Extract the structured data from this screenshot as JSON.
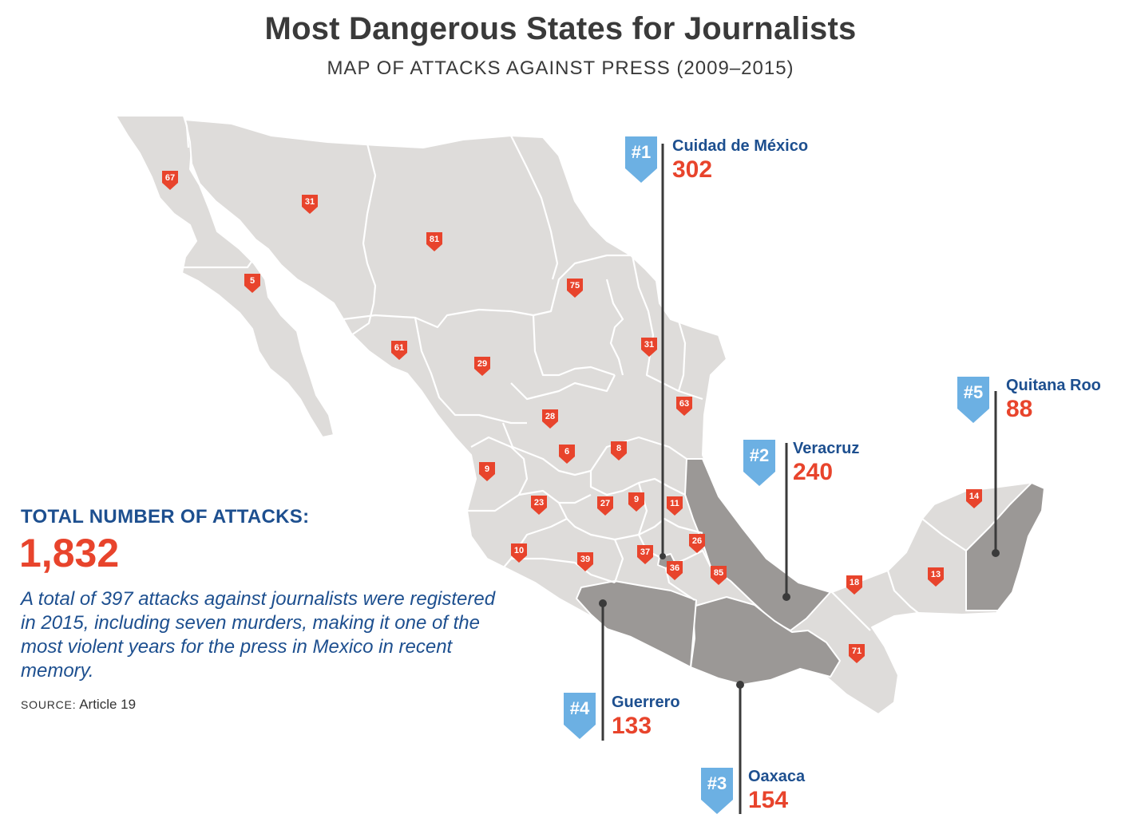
{
  "header": {
    "title": "Most Dangerous States for Journalists",
    "subtitle": "MAP OF ATTACKS AGAINST PRESS (2009–2015)"
  },
  "summary": {
    "total_label": "TOTAL NUMBER OF ATTACKS:",
    "total_value": "1,832",
    "note": "A total of 397 attacks against journalists were registered in 2015, including seven murders, making it one of the most violent years for the press in Mexico in recent memory.",
    "source_key": "SOURCE:",
    "source_value": "Article 19"
  },
  "top_states": [
    {
      "rank": "#1",
      "name": "Cuidad de México",
      "value": "302"
    },
    {
      "rank": "#2",
      "name": "Veracruz",
      "value": "240"
    },
    {
      "rank": "#3",
      "name": "Oaxaca",
      "value": "154"
    },
    {
      "rank": "#4",
      "name": "Guerrero",
      "value": "133"
    },
    {
      "rank": "#5",
      "name": "Quitana Roo",
      "value": "88"
    }
  ],
  "state_counts": {
    "baja_california": "67",
    "sonora": "31",
    "chihuahua": "81",
    "coahuila": "75",
    "baja_california_sur": "5",
    "sinaloa": "61",
    "durango": "29",
    "nuevo_leon": "31",
    "tamaulipas": "63",
    "zacatecas": "28",
    "aguascalientes": "6",
    "san_luis_potosi": "8",
    "nayarit": "9",
    "jalisco": "23",
    "guanajuato": "27",
    "queretaro": "9",
    "hidalgo": "11",
    "colima": "10",
    "michoacan": "39",
    "mexico_state": "37",
    "tlaxcala": "26",
    "morelos": "36",
    "puebla": "85",
    "tabasco": "18",
    "campeche": "13",
    "yucatan": "14",
    "chiapas": "71"
  },
  "colors": {
    "land": "#dedcda",
    "border": "#ffffff",
    "highlight": "#9b9896",
    "pin": "#e8442c",
    "rank_pin": "#6cb0e3",
    "navy": "#1d4f8f",
    "accent_red": "#e8442c"
  }
}
